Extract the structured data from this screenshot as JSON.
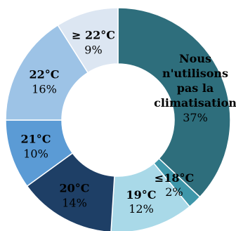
{
  "chart_data": {
    "type": "pie",
    "donut": true,
    "title": "",
    "legend": "none",
    "categories": [
      "Nous n'utilisons pas la climatisation",
      "≤18°C",
      "19°C",
      "20°C",
      "21°C",
      "22°C",
      "≥ 22°C"
    ],
    "values": [
      37,
      2,
      12,
      14,
      10,
      16,
      9
    ],
    "value_labels": [
      "37%",
      "2%",
      "12%",
      "14%",
      "10%",
      "16%",
      "9%"
    ],
    "label_lines": [
      [
        "Nous",
        "n'utilisons",
        "pas la",
        "climatisation"
      ],
      [
        "≤18°C"
      ],
      [
        "19°C"
      ],
      [
        "20°C"
      ],
      [
        "21°C"
      ],
      [
        "22°C"
      ],
      [
        "≥ 22°C"
      ]
    ],
    "colors": [
      "#2e6e7c",
      "#3f97aa",
      "#a9d9e8",
      "#1e3f66",
      "#5b9bd5",
      "#9dc3e6",
      "#dce6f2"
    ],
    "label_colors": [
      "#000000",
      "#000000",
      "#000000",
      "#000000",
      "#000000",
      "#000000",
      "#000000"
    ]
  }
}
